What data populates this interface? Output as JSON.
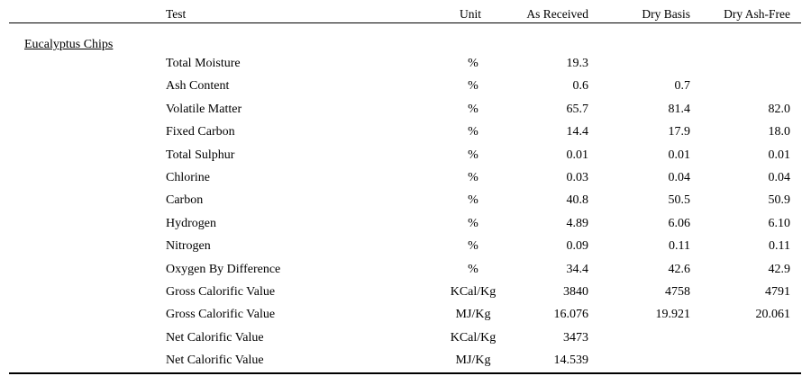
{
  "header": {
    "test": "Test",
    "unit": "Unit",
    "as_received": "As Received",
    "dry_basis": "Dry Basis",
    "dry_ash_free": "Dry Ash-Free"
  },
  "group": "Eucalyptus Chips",
  "rows": [
    {
      "test": "Total Moisture",
      "unit": "%",
      "ar": "19.3",
      "db": "",
      "daf": ""
    },
    {
      "test": "Ash Content",
      "unit": "%",
      "ar": "0.6",
      "db": "0.7",
      "daf": ""
    },
    {
      "test": "Volatile Matter",
      "unit": "%",
      "ar": "65.7",
      "db": "81.4",
      "daf": "82.0"
    },
    {
      "test": "Fixed Carbon",
      "unit": "%",
      "ar": "14.4",
      "db": "17.9",
      "daf": "18.0"
    },
    {
      "test": "Total Sulphur",
      "unit": "%",
      "ar": "0.01",
      "db": "0.01",
      "daf": "0.01"
    },
    {
      "test": "Chlorine",
      "unit": "%",
      "ar": "0.03",
      "db": "0.04",
      "daf": "0.04"
    },
    {
      "test": "Carbon",
      "unit": "%",
      "ar": "40.8",
      "db": "50.5",
      "daf": "50.9"
    },
    {
      "test": "Hydrogen",
      "unit": "%",
      "ar": "4.89",
      "db": "6.06",
      "daf": "6.10"
    },
    {
      "test": "Nitrogen",
      "unit": "%",
      "ar": "0.09",
      "db": "0.11",
      "daf": "0.11"
    },
    {
      "test": "Oxygen By Difference",
      "unit": "%",
      "ar": "34.4",
      "db": "42.6",
      "daf": "42.9"
    },
    {
      "test": "Gross Calorific Value",
      "unit": "KCal/Kg",
      "ar": "3840",
      "db": "4758",
      "daf": "4791"
    },
    {
      "test": "Gross Calorific Value",
      "unit": "MJ/Kg",
      "ar": "16.076",
      "db": "19.921",
      "daf": "20.061"
    },
    {
      "test": "Net Calorific Value",
      "unit": "KCal/Kg",
      "ar": "3473",
      "db": "",
      "daf": ""
    },
    {
      "test": "Net Calorific Value",
      "unit": "MJ/Kg",
      "ar": "14.539",
      "db": "",
      "daf": ""
    }
  ]
}
